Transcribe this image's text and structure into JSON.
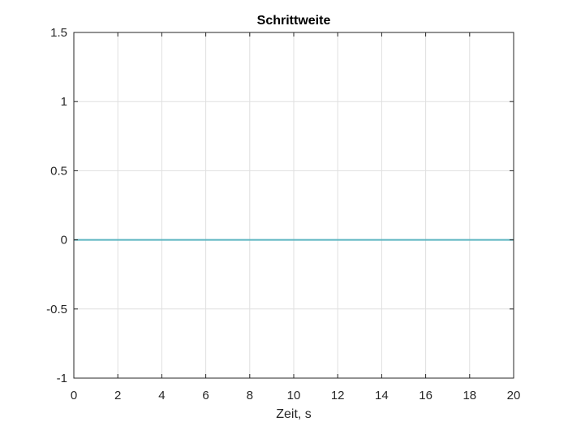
{
  "chart_data": {
    "type": "line",
    "title": "Schrittweite",
    "xlabel": "Zeit, s",
    "ylabel": "",
    "xlim": [
      0,
      20
    ],
    "ylim": [
      -1,
      1.5
    ],
    "xticks": [
      0,
      2,
      4,
      6,
      8,
      10,
      12,
      14,
      16,
      18,
      20
    ],
    "yticks": [
      -1,
      -0.5,
      0,
      0.5,
      1,
      1.5
    ],
    "xtick_labels": [
      "0",
      "2",
      "4",
      "6",
      "8",
      "10",
      "12",
      "14",
      "16",
      "18",
      "20"
    ],
    "ytick_labels": [
      "-1",
      "-0.5",
      "0",
      "0.5",
      "1",
      "1.5"
    ],
    "grid": true,
    "series": [
      {
        "color": "#5bb5c0",
        "x": [
          0,
          20
        ],
        "y": [
          0,
          0
        ]
      }
    ]
  },
  "colors": {
    "axes": "#262626",
    "grid": "#dfdfdf",
    "background": "#ffffff"
  }
}
